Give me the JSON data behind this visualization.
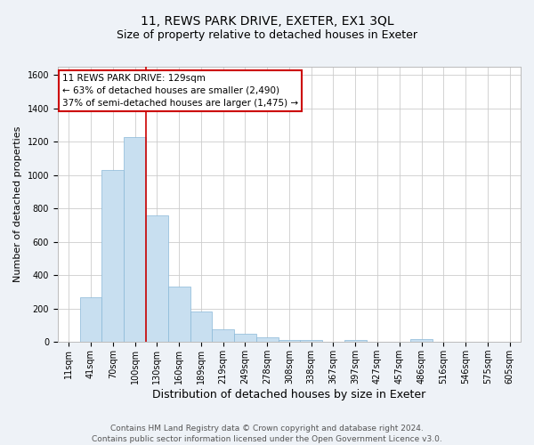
{
  "title": "11, REWS PARK DRIVE, EXETER, EX1 3QL",
  "subtitle": "Size of property relative to detached houses in Exeter",
  "xlabel": "Distribution of detached houses by size in Exeter",
  "ylabel": "Number of detached properties",
  "bar_color": "#c8dff0",
  "bar_edge_color": "#89b8d8",
  "bar_labels": [
    "11sqm",
    "41sqm",
    "70sqm",
    "100sqm",
    "130sqm",
    "160sqm",
    "189sqm",
    "219sqm",
    "249sqm",
    "278sqm",
    "308sqm",
    "338sqm",
    "367sqm",
    "397sqm",
    "427sqm",
    "457sqm",
    "486sqm",
    "516sqm",
    "546sqm",
    "575sqm",
    "605sqm"
  ],
  "bar_values": [
    2,
    270,
    1030,
    1230,
    760,
    330,
    185,
    75,
    50,
    30,
    10,
    10,
    2,
    12,
    2,
    2,
    18,
    2,
    2,
    2,
    0
  ],
  "ylim": [
    0,
    1650
  ],
  "yticks": [
    0,
    200,
    400,
    600,
    800,
    1000,
    1200,
    1400,
    1600
  ],
  "property_line_index": 4,
  "property_line_color": "#cc0000",
  "annotation_line1": "11 REWS PARK DRIVE: 129sqm",
  "annotation_line2": "← 63% of detached houses are smaller (2,490)",
  "annotation_line3": "37% of semi-detached houses are larger (1,475) →",
  "annotation_box_color": "#ffffff",
  "annotation_box_edge_color": "#cc0000",
  "footer_line1": "Contains HM Land Registry data © Crown copyright and database right 2024.",
  "footer_line2": "Contains public sector information licensed under the Open Government Licence v3.0.",
  "background_color": "#eef2f7",
  "plot_background_color": "#ffffff",
  "grid_color": "#cccccc",
  "title_fontsize": 10,
  "subtitle_fontsize": 9,
  "xlabel_fontsize": 9,
  "ylabel_fontsize": 8,
  "tick_fontsize": 7,
  "annotation_fontsize": 7.5,
  "footer_fontsize": 6.5
}
